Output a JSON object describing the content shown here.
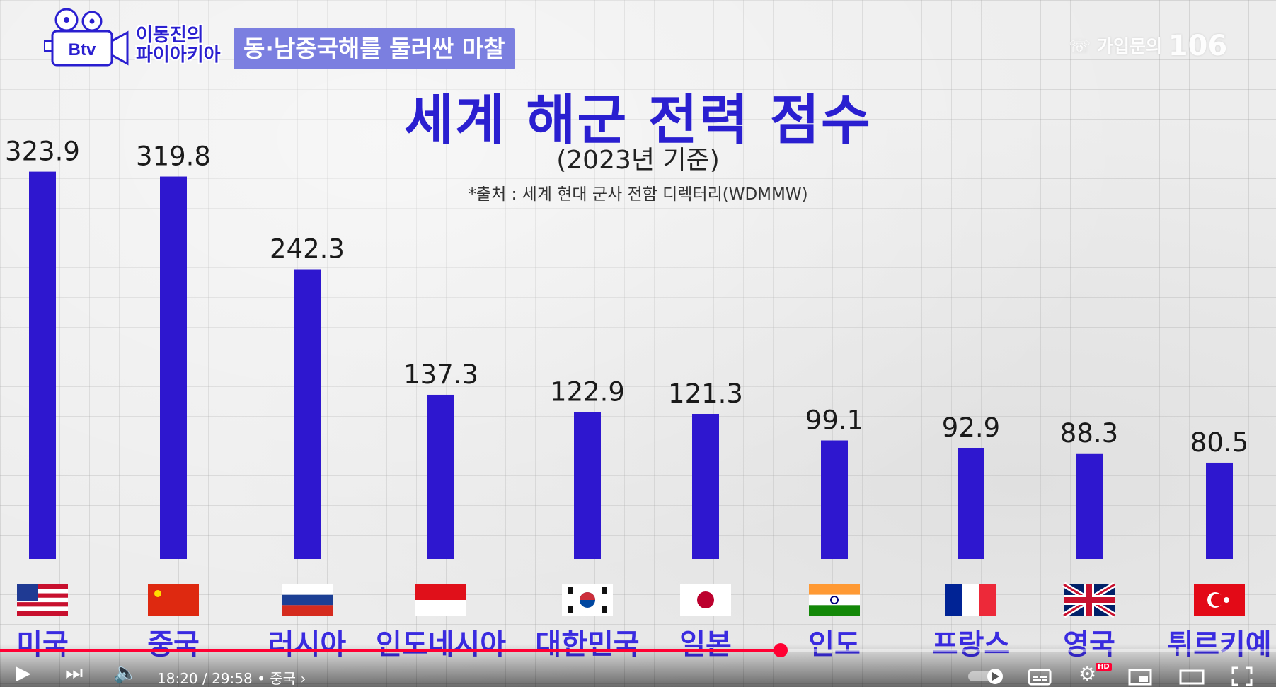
{
  "header": {
    "logo_text": "Btv",
    "show_title_line1": "이동진의",
    "show_title_line2": "파이아키아",
    "topic_tag": "동·남중국해를 둘러싼 마찰",
    "watermark_text": "가입문의",
    "watermark_number": "106"
  },
  "chart_data": {
    "type": "bar",
    "title": "세계 해군 전력 점수",
    "subtitle": "(2023년 기준)",
    "source": "*출처 : 세계 현대 군사 전함 디렉터리(WDMMW)",
    "categories": [
      "미국",
      "중국",
      "러시아",
      "인도네시아",
      "대한민국",
      "일본",
      "인도",
      "프랑스",
      "영국",
      "튀르키예"
    ],
    "values": [
      323.9,
      319.8,
      242.3,
      137.3,
      122.9,
      121.3,
      99.1,
      92.9,
      88.3,
      80.5
    ],
    "value_labels": [
      "323.9",
      "319.8",
      "242.3",
      "137.3",
      "122.9",
      "121.3",
      "99.1",
      "92.9",
      "88.3",
      "80.5"
    ],
    "flags": [
      "us-flag",
      "china-flag",
      "russia-flag",
      "indonesia-flag",
      "korea-flag",
      "japan-flag",
      "india-flag",
      "france-flag",
      "uk-flag",
      "turkey-flag"
    ],
    "bar_color": "#2e17cf",
    "label_color": "#3a2be0",
    "grid": true,
    "xlabel": "",
    "ylabel": ""
  },
  "player": {
    "time_current": "18:20",
    "time_total": "29:58",
    "chapter": "중국",
    "progress_fraction": 0.612,
    "icons": [
      "play-icon",
      "next-icon",
      "volume-icon",
      "autoplay-toggle-icon",
      "subtitles-icon",
      "settings-icon",
      "miniplayer-icon",
      "theater-icon",
      "fullscreen-icon"
    ],
    "hd_badge": "HD"
  }
}
